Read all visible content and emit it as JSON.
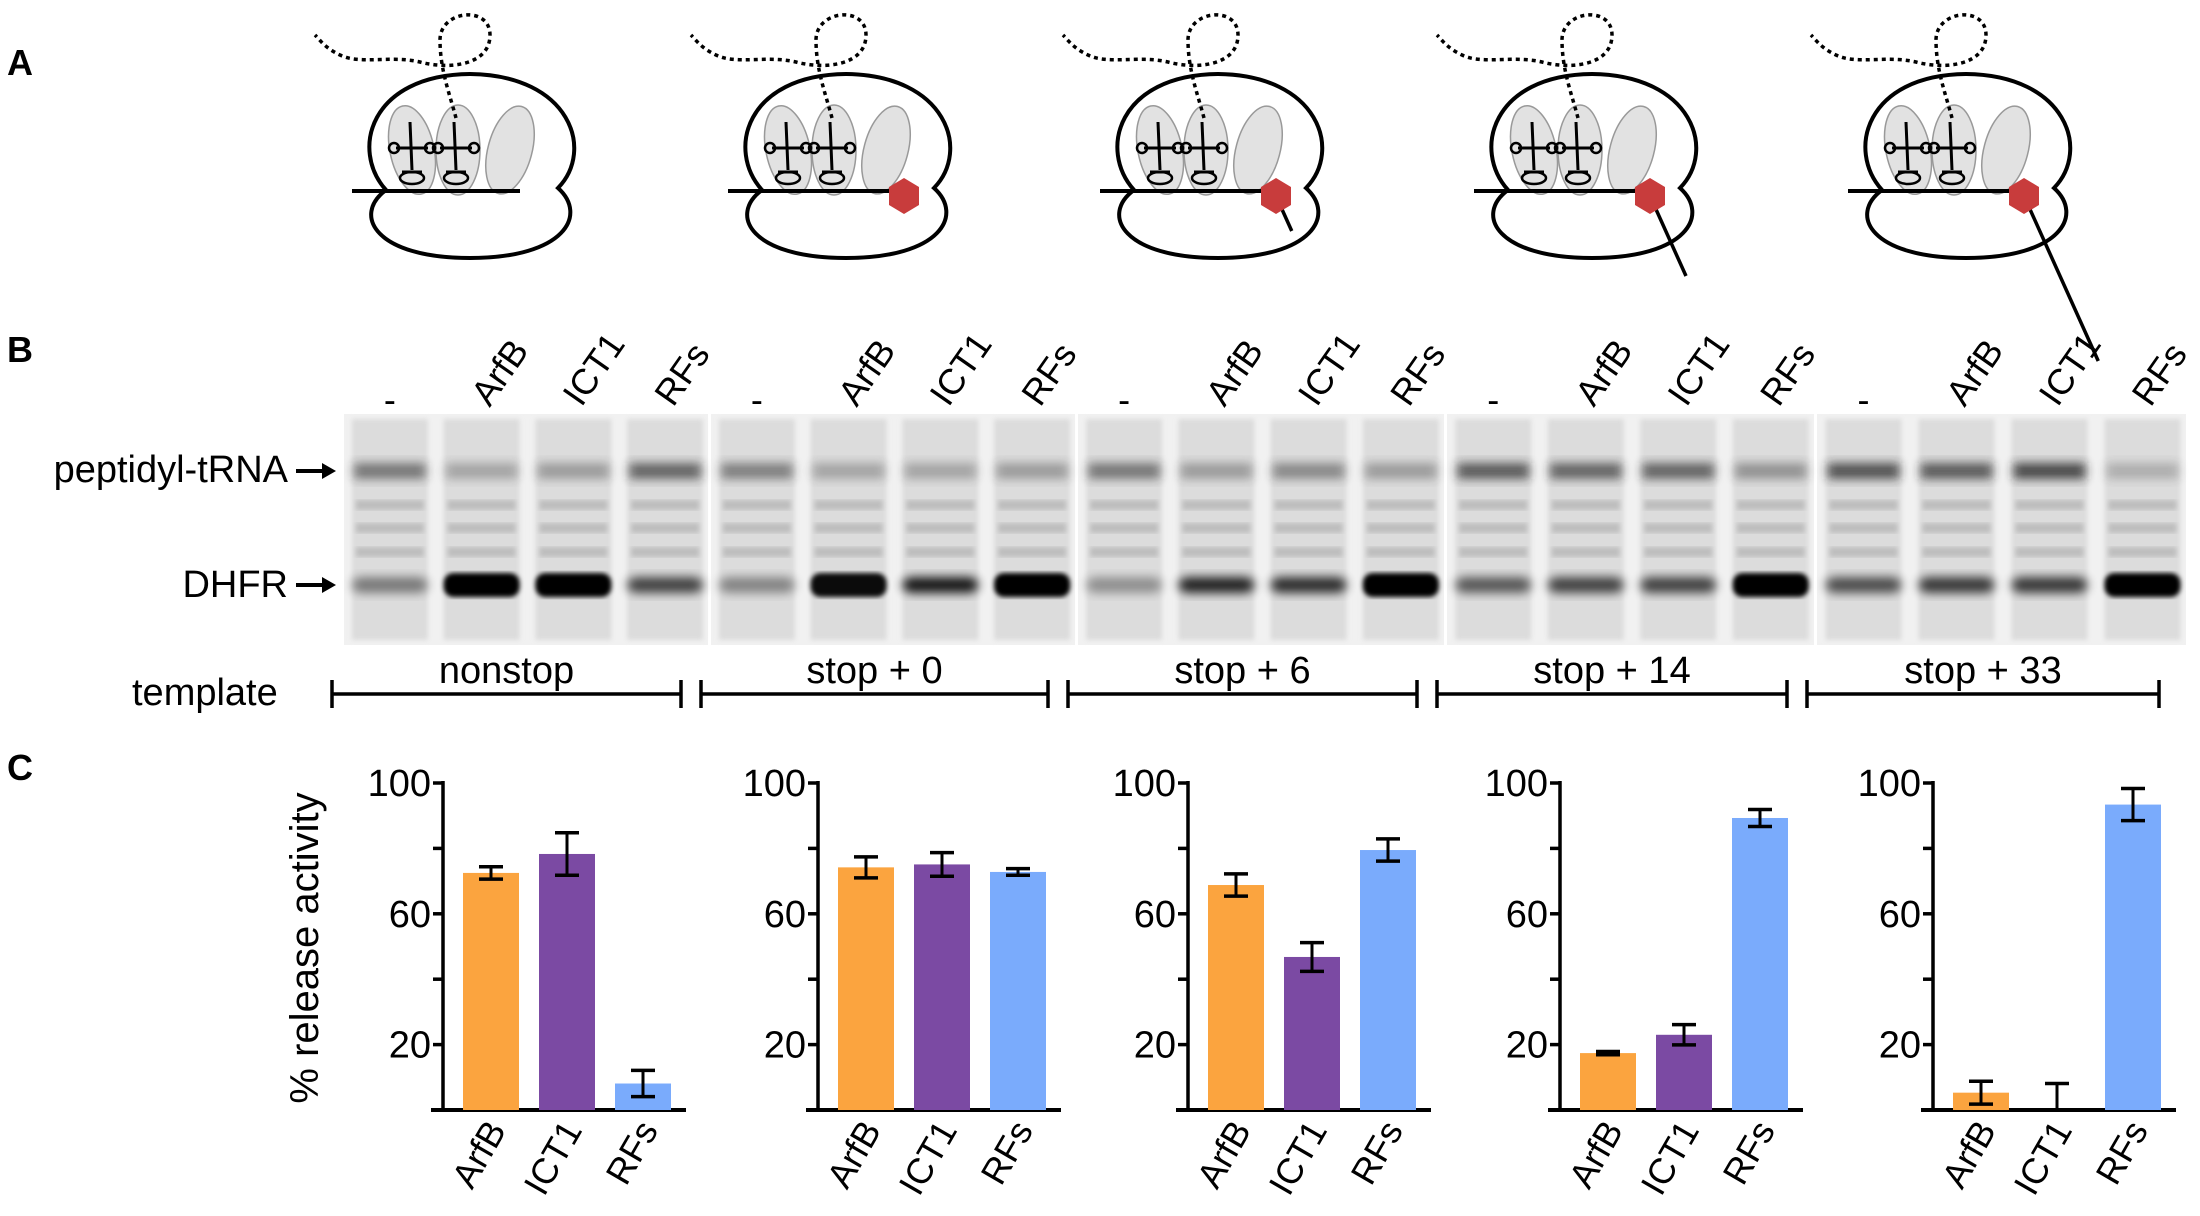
{
  "panels": {
    "a": "A",
    "b": "B",
    "c": "C"
  },
  "gel": {
    "lane_labels": [
      "-",
      "ArfB",
      "ICT1",
      "RFs"
    ],
    "band_labels": {
      "peptidyl": "peptidyl-tRNA",
      "dhfr": "DHFR"
    },
    "template_label": "template",
    "templates": [
      "nonstop",
      "stop + 0",
      "stop + 6",
      "stop + 14",
      "stop + 33"
    ]
  },
  "colors": {
    "ArfB": "#FBA43F",
    "ICT1": "#7B4AA3",
    "RFs": "#7AABFC",
    "stop_factor": "#C83C3C"
  },
  "chart_data": [
    {
      "type": "bar",
      "template": "nonstop",
      "categories": [
        "ArfB",
        "ICT1",
        "RFs"
      ],
      "values": [
        72.5,
        78.3,
        8.1
      ],
      "errors": [
        1.9,
        6.5,
        4.0
      ],
      "ylabel": "% release activity",
      "ylim": [
        0,
        100
      ],
      "yticks": [
        0,
        20,
        40,
        60,
        80,
        100
      ],
      "ytick_labels": [
        "20",
        "60",
        "100"
      ],
      "grid": false
    },
    {
      "type": "bar",
      "template": "stop + 0",
      "categories": [
        "ArfB",
        "ICT1",
        "RFs"
      ],
      "values": [
        74.2,
        75.1,
        72.8
      ],
      "errors": [
        3.2,
        3.6,
        1.0
      ],
      "ylim": [
        0,
        100
      ],
      "yticks": [
        0,
        20,
        40,
        60,
        80,
        100
      ],
      "ytick_labels": [
        "20",
        "60",
        "100"
      ],
      "grid": false
    },
    {
      "type": "bar",
      "template": "stop + 6",
      "categories": [
        "ArfB",
        "ICT1",
        "RFs"
      ],
      "values": [
        68.8,
        46.8,
        79.5
      ],
      "errors": [
        3.4,
        4.4,
        3.4
      ],
      "ylim": [
        0,
        100
      ],
      "yticks": [
        0,
        20,
        40,
        60,
        80,
        100
      ],
      "ytick_labels": [
        "20",
        "60",
        "100"
      ],
      "grid": false
    },
    {
      "type": "bar",
      "template": "stop + 14",
      "categories": [
        "ArfB",
        "ICT1",
        "RFs"
      ],
      "values": [
        17.4,
        23.0,
        89.3
      ],
      "errors": [
        0.5,
        3.1,
        2.6
      ],
      "ylim": [
        0,
        100
      ],
      "yticks": [
        0,
        20,
        40,
        60,
        80,
        100
      ],
      "ytick_labels": [
        "20",
        "60",
        "100"
      ],
      "grid": false
    },
    {
      "type": "bar",
      "template": "stop + 33",
      "categories": [
        "ArfB",
        "ICT1",
        "RFs"
      ],
      "values": [
        5.3,
        0,
        93.4
      ],
      "errors": [
        3.5,
        8.1,
        4.9
      ],
      "ylim": [
        0,
        100
      ],
      "yticks": [
        0,
        20,
        40,
        60,
        80,
        100
      ],
      "ytick_labels": [
        "20",
        "60",
        "100"
      ],
      "grid": false
    }
  ]
}
